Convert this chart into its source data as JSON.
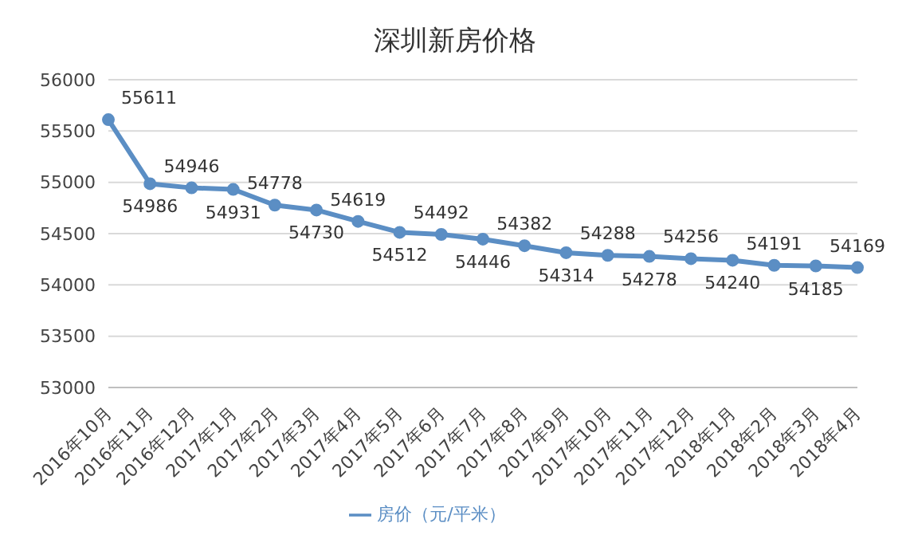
{
  "chart_data": {
    "type": "line",
    "title": "深圳新房价格",
    "categories": [
      "2016年10月",
      "2016年11月",
      "2016年12月",
      "2017年1月",
      "2017年2月",
      "2017年3月",
      "2017年4月",
      "2017年5月",
      "2017年6月",
      "2017年7月",
      "2017年8月",
      "2017年9月",
      "2017年10月",
      "2017年11月",
      "2017年12月",
      "2018年1月",
      "2018年2月",
      "2018年3月",
      "2018年4月"
    ],
    "series": [
      {
        "name": "房价（元/平米）",
        "color": "#5b8ec4",
        "values": [
          55611,
          54986,
          54946,
          54931,
          54778,
          54730,
          54619,
          54512,
          54492,
          54446,
          54382,
          54314,
          54288,
          54278,
          54256,
          54240,
          54191,
          54185,
          54169
        ]
      }
    ],
    "ylim": [
      53000,
      56000
    ],
    "yticks": [
      53000,
      53500,
      54000,
      54500,
      55000,
      55500,
      56000
    ],
    "grid": "y",
    "legend": "bottom",
    "marker": "circle",
    "line_style": "solid",
    "data_labels": true
  }
}
